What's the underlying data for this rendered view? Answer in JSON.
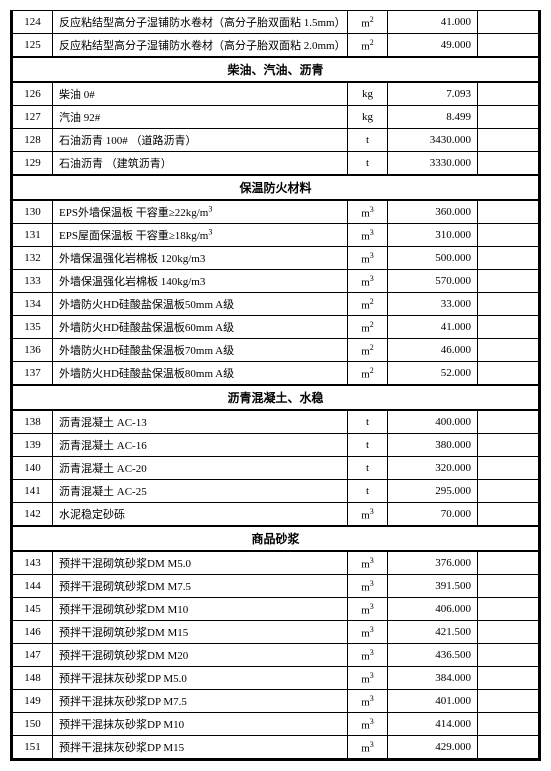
{
  "sections": [
    {
      "header": null,
      "rows": [
        {
          "num": "124",
          "name": "反应粘结型高分子湿铺防水卷材（高分子胎双面粘 1.5mm）",
          "unit": "m²",
          "price": "41.000"
        },
        {
          "num": "125",
          "name": "反应粘结型高分子湿铺防水卷材（高分子胎双面粘 2.0mm）",
          "unit": "m²",
          "price": "49.000"
        }
      ]
    },
    {
      "header": "柴油、汽油、沥青",
      "rows": [
        {
          "num": "126",
          "name": "柴油 0#",
          "unit": "kg",
          "price": "7.093"
        },
        {
          "num": "127",
          "name": "汽油 92#",
          "unit": "kg",
          "price": "8.499"
        },
        {
          "num": "128",
          "name": "石油沥青 100# （道路沥青）",
          "unit": "t",
          "price": "3430.000"
        },
        {
          "num": "129",
          "name": "石油沥青   （建筑沥青）",
          "unit": "t",
          "price": "3330.000"
        }
      ]
    },
    {
      "header": "保温防火材料",
      "rows": [
        {
          "num": "130",
          "name": "EPS外墙保温板 干容重≥22kg/m³",
          "unit": "m³",
          "price": "360.000"
        },
        {
          "num": "131",
          "name": "EPS屋面保温板 干容重≥18kg/m³",
          "unit": "m³",
          "price": "310.000"
        },
        {
          "num": "132",
          "name": "外墙保温强化岩棉板 120kg/m3",
          "unit": "m³",
          "price": "500.000"
        },
        {
          "num": "133",
          "name": "外墙保温强化岩棉板 140kg/m3",
          "unit": "m³",
          "price": "570.000"
        },
        {
          "num": "134",
          "name": "外墙防火HD硅酸盐保温板50mm  A级",
          "unit": "m²",
          "price": "33.000"
        },
        {
          "num": "135",
          "name": "外墙防火HD硅酸盐保温板60mm  A级",
          "unit": "m²",
          "price": "41.000"
        },
        {
          "num": "136",
          "name": "外墙防火HD硅酸盐保温板70mm  A级",
          "unit": "m²",
          "price": "46.000"
        },
        {
          "num": "137",
          "name": "外墙防火HD硅酸盐保温板80mm  A级",
          "unit": "m²",
          "price": "52.000"
        }
      ]
    },
    {
      "header": "沥青混凝土、水稳",
      "rows": [
        {
          "num": "138",
          "name": "沥青混凝土  AC-13",
          "unit": "t",
          "price": "400.000"
        },
        {
          "num": "139",
          "name": "沥青混凝土  AC-16",
          "unit": "t",
          "price": "380.000"
        },
        {
          "num": "140",
          "name": "沥青混凝土  AC-20",
          "unit": "t",
          "price": "320.000"
        },
        {
          "num": "141",
          "name": "沥青混凝土  AC-25",
          "unit": "t",
          "price": "295.000"
        },
        {
          "num": "142",
          "name": "水泥稳定砂砾",
          "unit": "m³",
          "price": "70.000"
        }
      ]
    },
    {
      "header": "商品砂浆",
      "rows": [
        {
          "num": "143",
          "name": "预拌干混砌筑砂浆DM M5.0",
          "unit": "m³",
          "price": "376.000"
        },
        {
          "num": "144",
          "name": "预拌干混砌筑砂浆DM M7.5",
          "unit": "m³",
          "price": "391.500"
        },
        {
          "num": "145",
          "name": "预拌干混砌筑砂浆DM M10",
          "unit": "m³",
          "price": "406.000"
        },
        {
          "num": "146",
          "name": "预拌干混砌筑砂浆DM M15",
          "unit": "m³",
          "price": "421.500"
        },
        {
          "num": "147",
          "name": "预拌干混砌筑砂浆DM M20",
          "unit": "m³",
          "price": "436.500"
        },
        {
          "num": "148",
          "name": "预拌干混抹灰砂浆DP M5.0",
          "unit": "m³",
          "price": "384.000"
        },
        {
          "num": "149",
          "name": "预拌干混抹灰砂浆DP M7.5",
          "unit": "m³",
          "price": "401.000"
        },
        {
          "num": "150",
          "name": "预拌干混抹灰砂浆DP M10",
          "unit": "m³",
          "price": "414.000"
        },
        {
          "num": "151",
          "name": "预拌干混抹灰砂浆DP M15",
          "unit": "m³",
          "price": "429.000"
        }
      ]
    }
  ]
}
